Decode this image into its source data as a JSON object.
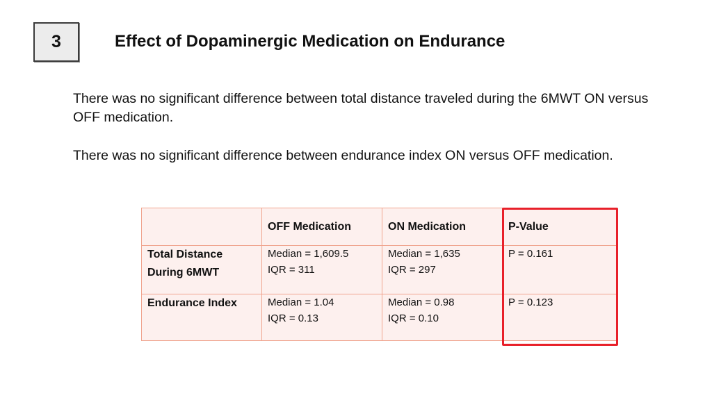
{
  "slide": {
    "number": "3",
    "title": "Effect of Dopaminergic Medication on Endurance"
  },
  "paragraphs": [
    "There was no significant difference between total distance traveled during the 6MWT ON versus OFF medication.",
    "There was no significant difference between endurance index ON versus OFF medication."
  ],
  "table": {
    "headers": [
      "",
      "OFF Medication",
      "ON Medication",
      "P-Value"
    ],
    "rows": [
      {
        "label": [
          "Total Distance",
          "During 6MWT"
        ],
        "off": [
          "Median = 1,609.5",
          "IQR = 311"
        ],
        "on": [
          "Median = 1,635",
          "IQR = 297"
        ],
        "p": "P = 0.161"
      },
      {
        "label": [
          "Endurance Index"
        ],
        "off": [
          "Median = 1.04",
          "IQR = 0.13"
        ],
        "on": [
          "Median = 0.98",
          "IQR = 0.10"
        ],
        "p": "P = 0.123"
      }
    ]
  },
  "colors": {
    "highlight": "#e8202a",
    "table_border": "#f0a58f",
    "table_fill": "#fdf0ee"
  }
}
